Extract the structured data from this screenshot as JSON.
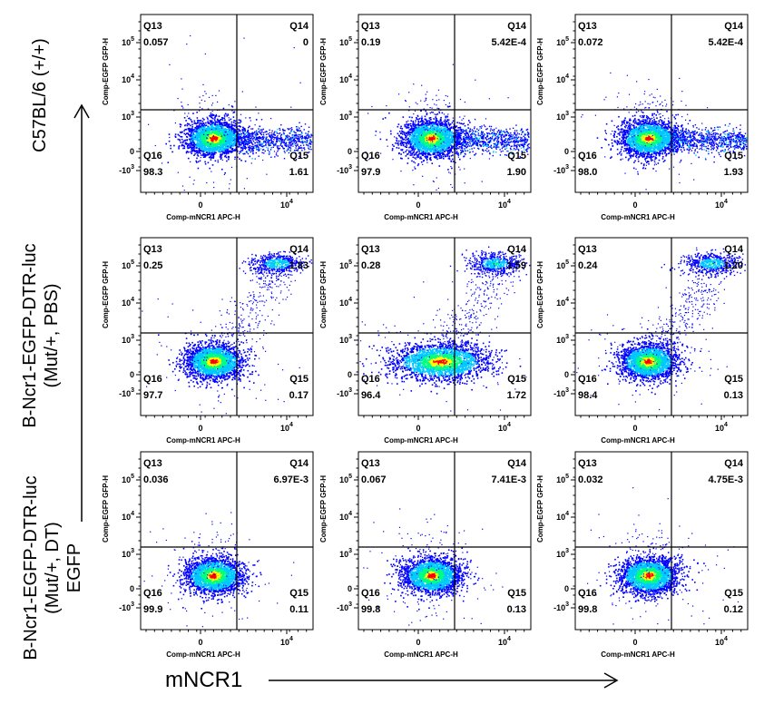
{
  "row_labels": [
    [
      "C57BL/6 (+/+)"
    ],
    [
      "B-Ncr1-EGFP-DTR-luc",
      "(Mut/+, PBS)"
    ],
    [
      "B-Ncr1-EGFP-DTR-luc",
      "(Mut/+, DT)",
      "EGFP"
    ]
  ],
  "x_axis_label": "mNCR1",
  "chart_data": {
    "type": "scatter",
    "subtype": "flow-cytometry-density-plot-grid",
    "grid": {
      "rows": 3,
      "cols": 3
    },
    "xlabel": "Comp-mNCR1 APC-H",
    "ylabel": "Comp-EGFP GFP-H",
    "x_ticks": [
      "0",
      "10^4"
    ],
    "y_ticks": [
      "-10^3",
      "0",
      "10^3",
      "10^4",
      "10^5"
    ],
    "colors": {
      "low": "#0000ff",
      "mid": "#00ff80",
      "high": "#ff0000"
    },
    "panels": [
      {
        "row": 0,
        "col": 0,
        "quadrants": {
          "Q13": "0.057",
          "Q14": "0",
          "Q15": "1.61",
          "Q16": "98.3"
        },
        "clusters": [
          "main",
          "tail"
        ]
      },
      {
        "row": 0,
        "col": 1,
        "quadrants": {
          "Q13": "0.19",
          "Q14": "5.42E-4",
          "Q15": "1.90",
          "Q16": "97.9"
        },
        "clusters": [
          "main",
          "tail"
        ]
      },
      {
        "row": 0,
        "col": 2,
        "quadrants": {
          "Q13": "0.072",
          "Q14": "5.42E-4",
          "Q15": "1.93",
          "Q16": "98.0"
        },
        "clusters": [
          "main",
          "tail"
        ]
      },
      {
        "row": 1,
        "col": 0,
        "quadrants": {
          "Q13": "0.25",
          "Q14": "1.83",
          "Q15": "0.17",
          "Q16": "97.7"
        },
        "clusters": [
          "main",
          "upper"
        ]
      },
      {
        "row": 1,
        "col": 1,
        "quadrants": {
          "Q13": "0.28",
          "Q14": "1.59",
          "Q15": "1.72",
          "Q16": "96.4"
        },
        "clusters": [
          "main-wide",
          "upper"
        ]
      },
      {
        "row": 1,
        "col": 2,
        "quadrants": {
          "Q13": "0.24",
          "Q14": "1.20",
          "Q15": "0.13",
          "Q16": "98.4"
        },
        "clusters": [
          "main",
          "upper"
        ]
      },
      {
        "row": 2,
        "col": 0,
        "quadrants": {
          "Q13": "0.036",
          "Q14": "6.97E-3",
          "Q15": "0.11",
          "Q16": "99.9"
        },
        "clusters": [
          "main"
        ]
      },
      {
        "row": 2,
        "col": 1,
        "quadrants": {
          "Q13": "0.067",
          "Q14": "7.41E-3",
          "Q15": "0.13",
          "Q16": "99.8"
        },
        "clusters": [
          "main"
        ]
      },
      {
        "row": 2,
        "col": 2,
        "quadrants": {
          "Q13": "0.032",
          "Q14": "4.75E-3",
          "Q15": "0.12",
          "Q16": "99.8"
        },
        "clusters": [
          "main"
        ]
      }
    ]
  }
}
